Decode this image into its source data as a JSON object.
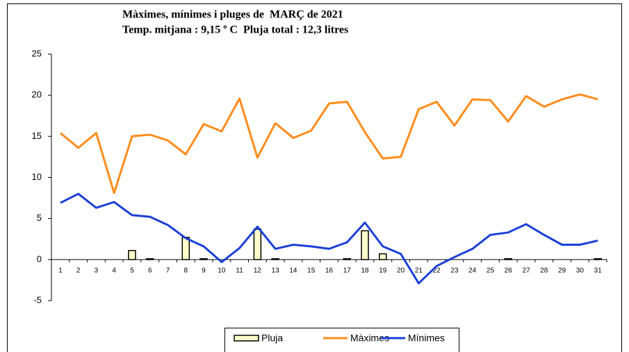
{
  "chart_data": {
    "type": "line",
    "title": "Màximes, mínimes i pluges de  MARÇ de 2021",
    "subtitle": "Temp. mitjana : 9,15 º C  Pluja total : 12,3 litres",
    "categories": [
      "1",
      "2",
      "3",
      "4",
      "5",
      "6",
      "7",
      "8",
      "9",
      "10",
      "11",
      "12",
      "13",
      "14",
      "15",
      "16",
      "17",
      "18",
      "19",
      "20",
      "21",
      "22",
      "23",
      "24",
      "25",
      "26",
      "27",
      "28",
      "29",
      "30",
      "31"
    ],
    "series": [
      {
        "name": "Pluja",
        "type": "bar",
        "color": "#ffffcc",
        "values": [
          0,
          0,
          0,
          0,
          1.1,
          0.1,
          0,
          2.7,
          0.1,
          0,
          0,
          3.7,
          0.1,
          0,
          0,
          0,
          0.1,
          3.5,
          0.7,
          0,
          0,
          0,
          0,
          0,
          0,
          0.1,
          0,
          0,
          0,
          0,
          0.1
        ]
      },
      {
        "name": "Màximes",
        "type": "line",
        "color": "#ff8c1a",
        "values": [
          15.4,
          13.6,
          15.4,
          8.1,
          15.0,
          15.2,
          14.5,
          12.8,
          16.5,
          15.6,
          19.6,
          12.4,
          16.6,
          14.8,
          15.7,
          19.0,
          19.2,
          15.5,
          12.3,
          12.5,
          18.3,
          19.2,
          16.3,
          19.5,
          19.4,
          16.8,
          19.9,
          18.6,
          19.5,
          20.1,
          19.5
        ]
      },
      {
        "name": "Mínimes",
        "type": "line",
        "color": "#1a3fd6",
        "values": [
          6.9,
          8.0,
          6.3,
          7.0,
          5.4,
          5.2,
          4.2,
          2.6,
          1.6,
          -0.3,
          1.4,
          4.0,
          1.3,
          1.8,
          1.6,
          1.3,
          2.1,
          4.5,
          1.6,
          0.7,
          -2.9,
          -0.8,
          0.3,
          1.3,
          3.0,
          3.3,
          4.3,
          3.0,
          1.8,
          1.8,
          2.3
        ]
      }
    ],
    "ylim": [
      -5,
      25
    ],
    "yticks": [
      -5,
      0,
      5,
      10,
      15,
      20,
      25
    ],
    "grid": false,
    "legend": "bottom"
  }
}
